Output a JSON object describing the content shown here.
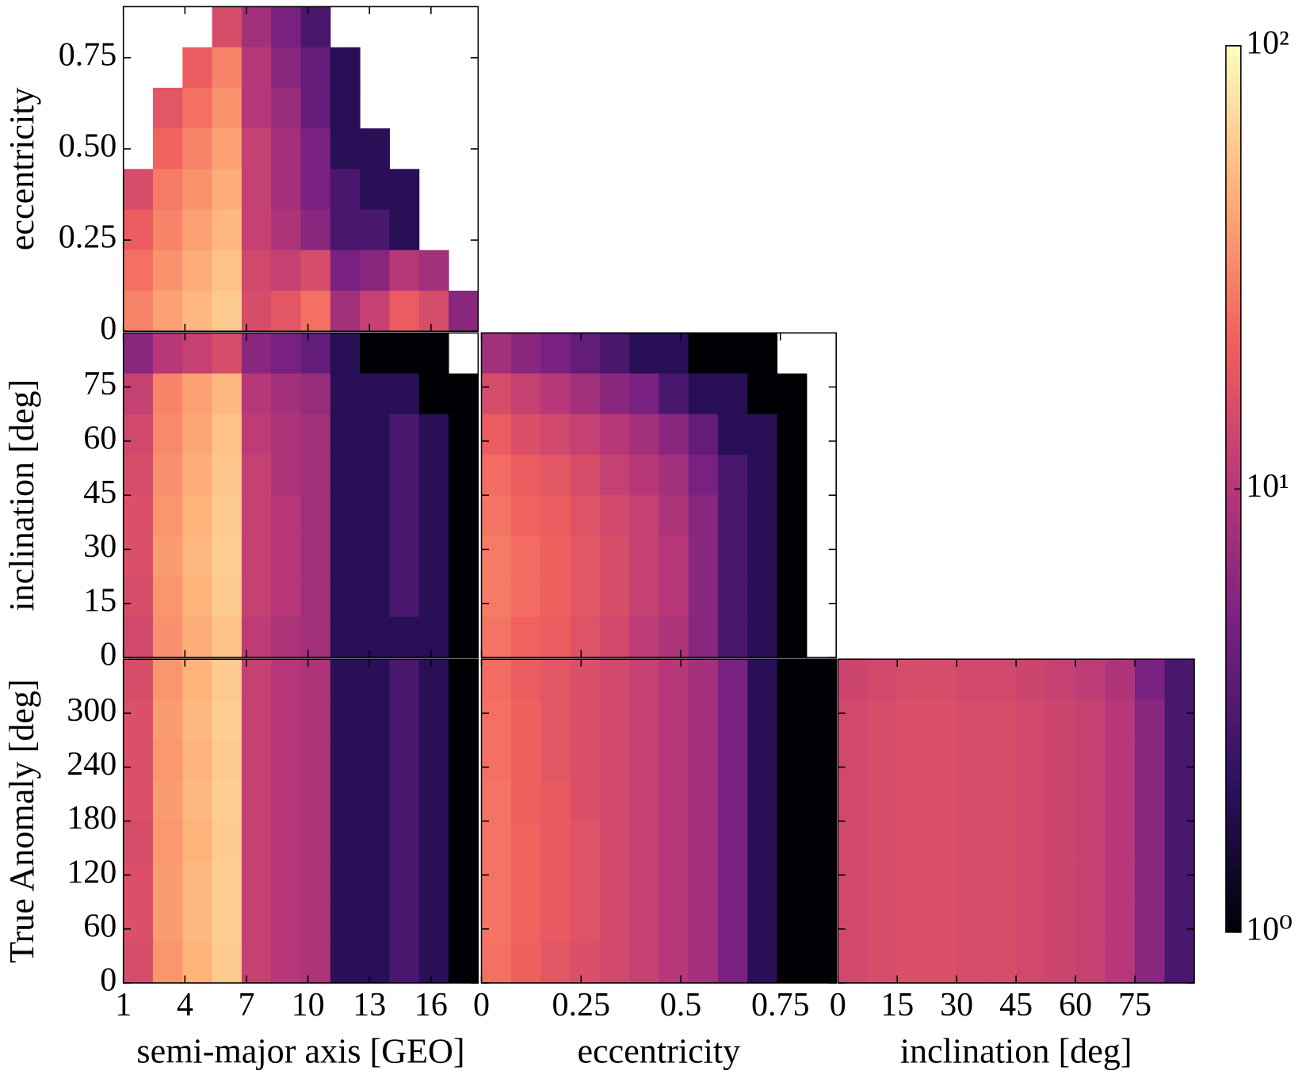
{
  "chart_data": [
    {
      "type": "heatmap",
      "ylabel": "eccentricity",
      "xlim": [
        1,
        18.3
      ],
      "ylim": [
        0,
        0.89
      ],
      "xticks": [
        1,
        4,
        7,
        10,
        13,
        16
      ],
      "yticks": [
        0,
        0.25,
        {
          "value": 0.5,
          "label": "0.50"
        },
        0.75
      ],
      "xtick_labels": false,
      "ytick_labels": true,
      "z": [
        [
          null,
          null,
          null,
          15,
          8,
          5,
          3,
          null,
          null,
          null,
          null,
          null
        ],
        [
          null,
          null,
          20,
          30,
          10,
          6,
          4,
          2,
          null,
          null,
          null,
          null
        ],
        [
          null,
          18,
          25,
          35,
          10,
          7,
          4,
          2,
          null,
          null,
          null,
          null
        ],
        [
          null,
          22,
          30,
          40,
          12,
          8,
          5,
          2,
          2,
          null,
          null,
          null
        ],
        [
          15,
          28,
          35,
          45,
          12,
          8,
          5,
          3,
          2,
          2,
          null,
          null
        ],
        [
          20,
          30,
          40,
          50,
          12,
          9,
          6,
          3,
          3,
          2,
          null,
          null
        ],
        [
          25,
          35,
          45,
          55,
          14,
          12,
          15,
          5,
          6,
          10,
          8,
          null
        ],
        [
          30,
          40,
          50,
          60,
          15,
          18,
          25,
          8,
          12,
          20,
          15,
          6
        ]
      ]
    },
    {
      "type": "heatmap",
      "ylabel": "inclination [deg]",
      "xlim": [
        1,
        18.3
      ],
      "ylim": [
        0,
        90
      ],
      "xticks": [
        1,
        4,
        7,
        10,
        13,
        16
      ],
      "yticks": [
        0,
        15,
        30,
        45,
        60,
        75
      ],
      "xtick_labels": false,
      "ytick_labels": true,
      "z": [
        [
          6,
          10,
          12,
          15,
          6,
          5,
          4,
          2,
          1,
          1,
          1,
          null
        ],
        [
          12,
          30,
          40,
          50,
          10,
          8,
          7,
          2,
          2,
          2,
          1,
          1
        ],
        [
          14,
          32,
          42,
          55,
          11,
          9,
          8,
          2,
          2,
          3,
          2,
          1
        ],
        [
          15,
          34,
          45,
          58,
          12,
          9,
          8,
          2,
          2,
          3,
          2,
          1
        ],
        [
          16,
          36,
          48,
          60,
          12,
          10,
          8,
          2,
          2,
          3,
          2,
          1
        ],
        [
          16,
          38,
          50,
          62,
          12,
          10,
          8,
          2,
          2,
          3,
          2,
          1
        ],
        [
          15,
          36,
          48,
          60,
          12,
          10,
          8,
          2,
          2,
          3,
          2,
          1
        ],
        [
          14,
          34,
          45,
          55,
          11,
          9,
          8,
          2,
          2,
          2,
          2,
          1
        ]
      ]
    },
    {
      "type": "heatmap",
      "xlim": [
        0,
        0.89
      ],
      "ylim": [
        0,
        90
      ],
      "xticks": [
        0,
        0.25,
        0.5,
        0.75
      ],
      "yticks": [
        0,
        15,
        30,
        45,
        60,
        75
      ],
      "xtick_labels": false,
      "ytick_labels": false,
      "z": [
        [
          8,
          6,
          5,
          4,
          3,
          2,
          2,
          1,
          1,
          1,
          null,
          null
        ],
        [
          15,
          12,
          10,
          8,
          6,
          5,
          3,
          2,
          2,
          1,
          1,
          null
        ],
        [
          20,
          16,
          14,
          12,
          10,
          8,
          6,
          4,
          2,
          2,
          1,
          null
        ],
        [
          24,
          20,
          18,
          15,
          12,
          10,
          8,
          5,
          3,
          2,
          1,
          null
        ],
        [
          26,
          22,
          20,
          17,
          14,
          12,
          9,
          6,
          3,
          2,
          1,
          null
        ],
        [
          28,
          24,
          21,
          18,
          15,
          12,
          10,
          6,
          3,
          2,
          1,
          null
        ],
        [
          28,
          24,
          21,
          18,
          15,
          12,
          10,
          6,
          3,
          2,
          1,
          null
        ],
        [
          26,
          22,
          20,
          17,
          14,
          11,
          9,
          6,
          3,
          2,
          1,
          null
        ]
      ]
    },
    {
      "type": "heatmap",
      "xlabel": "semi-major axis [GEO]",
      "ylabel": "True Anomaly [deg]",
      "xlim": [
        1,
        18.3
      ],
      "ylim": [
        0,
        360
      ],
      "xticks": [
        1,
        4,
        7,
        10,
        13,
        16
      ],
      "yticks": [
        0,
        60,
        120,
        180,
        240,
        300
      ],
      "xtick_labels": true,
      "ytick_labels": true,
      "z": [
        [
          15,
          36,
          48,
          60,
          12,
          10,
          9,
          2,
          2,
          3,
          2,
          1
        ],
        [
          16,
          38,
          50,
          62,
          12,
          10,
          9,
          2,
          2,
          3,
          2,
          1
        ],
        [
          16,
          37,
          49,
          61,
          12,
          10,
          9,
          2,
          2,
          3,
          2,
          1
        ],
        [
          16,
          38,
          50,
          62,
          12,
          10,
          9,
          2,
          2,
          3,
          2,
          1
        ],
        [
          15,
          37,
          48,
          61,
          12,
          10,
          9,
          2,
          2,
          3,
          2,
          1
        ],
        [
          16,
          38,
          50,
          62,
          12,
          10,
          9,
          2,
          2,
          3,
          2,
          1
        ],
        [
          16,
          38,
          50,
          62,
          12,
          10,
          9,
          2,
          2,
          3,
          2,
          1
        ],
        [
          15,
          36,
          48,
          60,
          12,
          10,
          9,
          2,
          2,
          3,
          2,
          1
        ]
      ]
    },
    {
      "type": "heatmap",
      "xlabel": "eccentricity",
      "xlim": [
        0,
        0.89
      ],
      "ylim": [
        0,
        360
      ],
      "xticks": [
        0,
        0.25,
        0.5,
        0.75
      ],
      "yticks": [
        0,
        60,
        120,
        180,
        240,
        300
      ],
      "xtick_labels": true,
      "ytick_labels": false,
      "z": [
        [
          24,
          20,
          18,
          16,
          14,
          12,
          10,
          8,
          5,
          2,
          1,
          1
        ],
        [
          25,
          21,
          18,
          16,
          14,
          12,
          10,
          8,
          5,
          2,
          1,
          1
        ],
        [
          25,
          21,
          18,
          16,
          14,
          12,
          10,
          8,
          5,
          2,
          1,
          1
        ],
        [
          26,
          21,
          19,
          16,
          14,
          12,
          10,
          8,
          5,
          2,
          1,
          1
        ],
        [
          26,
          22,
          19,
          17,
          14,
          12,
          10,
          8,
          5,
          2,
          1,
          1
        ],
        [
          26,
          22,
          19,
          17,
          14,
          12,
          10,
          8,
          5,
          2,
          1,
          1
        ],
        [
          26,
          22,
          19,
          17,
          14,
          12,
          10,
          8,
          5,
          2,
          1,
          1
        ],
        [
          25,
          21,
          18,
          16,
          14,
          12,
          10,
          8,
          5,
          2,
          1,
          1
        ]
      ]
    },
    {
      "type": "heatmap",
      "xlabel": "inclination [deg]",
      "xlim": [
        0,
        90
      ],
      "ylim": [
        0,
        360
      ],
      "xticks": [
        0,
        15,
        30,
        45,
        60,
        75
      ],
      "yticks": [
        0,
        60,
        120,
        180,
        240,
        300
      ],
      "xtick_labels": true,
      "ytick_labels": false,
      "z": [
        [
          13,
          14,
          15,
          15,
          14,
          14,
          13,
          12,
          11,
          9,
          5,
          3
        ],
        [
          14,
          15,
          16,
          16,
          15,
          15,
          14,
          13,
          12,
          10,
          6,
          3
        ],
        [
          14,
          15,
          16,
          16,
          15,
          15,
          14,
          13,
          12,
          10,
          6,
          3
        ],
        [
          14,
          15,
          16,
          16,
          15,
          15,
          14,
          13,
          12,
          10,
          6,
          3
        ],
        [
          14,
          15,
          16,
          16,
          15,
          15,
          14,
          13,
          12,
          10,
          6,
          3
        ],
        [
          14,
          15,
          16,
          16,
          15,
          15,
          14,
          13,
          12,
          10,
          6,
          3
        ],
        [
          14,
          15,
          16,
          16,
          15,
          15,
          14,
          13,
          12,
          10,
          6,
          3
        ],
        [
          14,
          15,
          16,
          16,
          15,
          15,
          14,
          13,
          12,
          10,
          6,
          3
        ]
      ]
    }
  ],
  "colorbar": {
    "scale": "log",
    "lim": [
      1,
      100
    ],
    "ticks": [
      {
        "value": 1,
        "label": "10⁰"
      },
      {
        "value": 10,
        "label": "10¹"
      },
      {
        "value": 100,
        "label": "10²"
      }
    ],
    "colors": [
      "#000004",
      "#2c115f",
      "#721f81",
      "#b73779",
      "#f1605d",
      "#feb078",
      "#fcfdbf"
    ]
  }
}
